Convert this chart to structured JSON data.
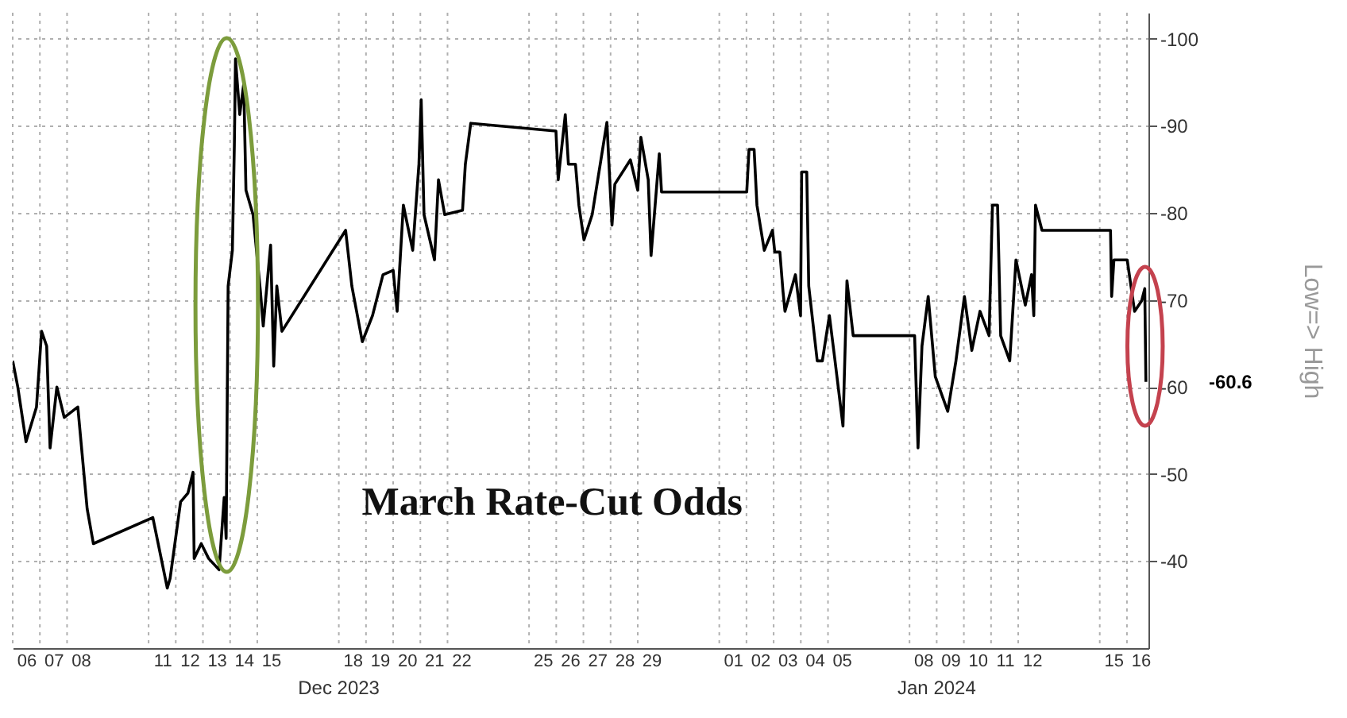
{
  "chart_data": {
    "type": "line",
    "title": "March Rate-Cut Odds",
    "ylabel": "Low=> High",
    "x": [
      "2023-12-06T00:00",
      "2023-12-06T04:30",
      "2023-12-06T11:45",
      "2023-12-06T21:00",
      "2023-12-07T01:30",
      "2023-12-07T06:00",
      "2023-12-07T09:00",
      "2023-12-07T15:00",
      "2023-12-07T21:30",
      "2023-12-08T09:30",
      "2023-12-08T17:45",
      "2023-12-08T23:15",
      "2023-12-11T03:45",
      "2023-12-11T16:30",
      "2023-12-11T19:00",
      "2023-12-12T04:15",
      "2023-12-12T10:45",
      "2023-12-12T15:15",
      "2023-12-12T16:15",
      "2023-12-12T22:30",
      "2023-12-13T05:00",
      "2023-12-13T14:15",
      "2023-12-13T18:45",
      "2023-12-13T20:30",
      "2023-12-13T22:15",
      "2023-12-14T02:00",
      "2023-12-14T03:45",
      "2023-12-14T04:45",
      "2023-12-14T08:30",
      "2023-12-14T12:00",
      "2023-12-14T14:00",
      "2023-12-14T20:15",
      "2023-12-15T02:45",
      "2023-12-15T05:15",
      "2023-12-15T11:45",
      "2023-12-15T14:30",
      "2023-12-15T17:15",
      "2023-12-15T21:45",
      "2023-12-18T06:00",
      "2023-12-18T11:30",
      "2023-12-18T20:45",
      "2023-12-19T05:45",
      "2023-12-19T15:00",
      "2023-12-20T00:00",
      "2023-12-20T03:30",
      "2023-12-20T09:00",
      "2023-12-20T17:15",
      "2023-12-20T22:45",
      "2023-12-21T00:45",
      "2023-12-21T03:15",
      "2023-12-21T12:30",
      "2023-12-21T16:00",
      "2023-12-21T21:30",
      "2023-12-22T13:15",
      "2023-12-22T15:45",
      "2023-12-22T20:30",
      "2023-12-25T23:45",
      "2023-12-26T01:45",
      "2023-12-26T08:00",
      "2023-12-26T10:45",
      "2023-12-26T17:00",
      "2023-12-26T20:00",
      "2023-12-27T00:30",
      "2023-12-27T07:45",
      "2023-12-27T20:45",
      "2023-12-28T01:15",
      "2023-12-28T03:45",
      "2023-12-28T17:30",
      "2023-12-29T00:00",
      "2023-12-29T02:45",
      "2023-12-29T09:15",
      "2023-12-29T11:45",
      "2023-12-29T19:00",
      "2023-12-29T21:00",
      "2024-01-02T00:15",
      "2024-01-02T02:15",
      "2024-01-02T06:45",
      "2024-01-02T09:15",
      "2024-01-02T15:45",
      "2024-01-02T23:00",
      "2024-01-03T01:00",
      "2024-01-03T05:30",
      "2024-01-03T08:15",
      "2024-01-03T10:00",
      "2024-01-03T19:15",
      "2024-01-03T23:45",
      "2024-01-04T00:45",
      "2024-01-04T05:15",
      "2024-01-04T07:00",
      "2024-01-04T14:30",
      "2024-01-04T19:00",
      "2024-01-05T01:15",
      "2024-01-05T05:45",
      "2024-01-05T13:15",
      "2024-01-05T16:45",
      "2024-01-05T22:15",
      "2024-01-08T04:30",
      "2024-01-08T07:30",
      "2024-01-08T11:00",
      "2024-01-08T16:30",
      "2024-01-08T22:45",
      "2024-01-09T09:45",
      "2024-01-09T17:00",
      "2024-01-10T00:30",
      "2024-01-10T07:00",
      "2024-01-10T14:15",
      "2024-01-10T22:15",
      "2024-01-11T01:15",
      "2024-01-11T05:45",
      "2024-01-11T08:30",
      "2024-01-11T16:30",
      "2024-01-11T22:00",
      "2024-01-12T06:15",
      "2024-01-12T11:45",
      "2024-01-12T13:45",
      "2024-01-12T15:15",
      "2024-01-12T21:00",
      "2024-01-15T09:30",
      "2024-01-15T10:30",
      "2024-01-15T12:30",
      "2024-01-16T00:15",
      "2024-01-16T06:45",
      "2024-01-16T13:00",
      "2024-01-16T15:45",
      "2024-01-16T16:45"
    ],
    "series": [
      {
        "color": "#000000",
        "values": [
          -63,
          -60,
          -53.7,
          -57.7,
          -66.4,
          -64.7,
          -53,
          -60,
          -56.5,
          -57.7,
          -46,
          -42,
          -45,
          -36.9,
          -38,
          -46.8,
          -47.8,
          -50.2,
          -40.3,
          -42,
          -40.3,
          -39,
          -47.3,
          -42.6,
          -71.6,
          -75.7,
          -87.8,
          -97.7,
          -91.3,
          -94.8,
          -82.6,
          -79.8,
          -71,
          -67,
          -76.3,
          -62.4,
          -71.6,
          -66.4,
          -78,
          -71.6,
          -65.2,
          -68.2,
          -72.9,
          -73.4,
          -68.7,
          -80.9,
          -75.7,
          -85.6,
          -93,
          -79.8,
          -74.6,
          -83.8,
          -79.8,
          -80.3,
          -85.6,
          -90.3,
          -89.4,
          -83.8,
          -91.3,
          -85.6,
          -85.6,
          -80.9,
          -76.9,
          -79.8,
          -90.4,
          -78.6,
          -83.3,
          -86.1,
          -82.6,
          -88.7,
          -83.8,
          -75.1,
          -86.8,
          -82.4,
          -82.4,
          -87.3,
          -87.3,
          -80.9,
          -75.7,
          -78,
          -75.5,
          -75.5,
          -71,
          -68.7,
          -72.9,
          -68.2,
          -84.7,
          -84.7,
          -71.6,
          -63,
          -63,
          -68.2,
          -63.5,
          -55.5,
          -72.2,
          -65.9,
          -65.9,
          -53,
          -64.7,
          -70.4,
          -61.2,
          -57.2,
          -63,
          -70.4,
          -64.2,
          -68.7,
          -65.9,
          -80.9,
          -80.9,
          -65.9,
          -63,
          -74.6,
          -69.4,
          -72.9,
          -68.2,
          -80.9,
          -78,
          -78,
          -70.4,
          -74.6,
          -74.6,
          -68.7,
          -69.9,
          -71.3,
          -60.6
        ]
      }
    ],
    "xlim": [
      "2023-12-06T00:00",
      "2024-01-16T19:00"
    ],
    "xticks": [
      {
        "value": "2023-12-06T12:00",
        "label": "06"
      },
      {
        "value": "2023-12-07T12:00",
        "label": "07"
      },
      {
        "value": "2023-12-08T12:00",
        "label": "08"
      },
      {
        "value": "2023-12-11T12:00",
        "label": "11"
      },
      {
        "value": "2023-12-12T12:00",
        "label": "12"
      },
      {
        "value": "2023-12-13T12:00",
        "label": "13"
      },
      {
        "value": "2023-12-14T12:00",
        "label": "14"
      },
      {
        "value": "2023-12-15T12:00",
        "label": "15"
      },
      {
        "value": "2023-12-18T12:00",
        "label": "18"
      },
      {
        "value": "2023-12-19T12:00",
        "label": "19"
      },
      {
        "value": "2023-12-20T12:00",
        "label": "20"
      },
      {
        "value": "2023-12-21T12:00",
        "label": "21"
      },
      {
        "value": "2023-12-22T12:00",
        "label": "22"
      },
      {
        "value": "2023-12-25T12:00",
        "label": "25"
      },
      {
        "value": "2023-12-26T12:00",
        "label": "26"
      },
      {
        "value": "2023-12-27T12:00",
        "label": "27"
      },
      {
        "value": "2023-12-28T12:00",
        "label": "28"
      },
      {
        "value": "2023-12-29T12:00",
        "label": "29"
      },
      {
        "value": "2024-01-01T12:00",
        "label": "01"
      },
      {
        "value": "2024-01-02T12:00",
        "label": "02"
      },
      {
        "value": "2024-01-03T12:00",
        "label": "03"
      },
      {
        "value": "2024-01-04T12:00",
        "label": "04"
      },
      {
        "value": "2024-01-05T12:00",
        "label": "05"
      },
      {
        "value": "2024-01-08T12:00",
        "label": "08"
      },
      {
        "value": "2024-01-09T12:00",
        "label": "09"
      },
      {
        "value": "2024-01-10T12:00",
        "label": "10"
      },
      {
        "value": "2024-01-11T12:00",
        "label": "11"
      },
      {
        "value": "2024-01-12T12:00",
        "label": "12"
      },
      {
        "value": "2024-01-15T12:00",
        "label": "15"
      },
      {
        "value": "2024-01-16T12:00",
        "label": "16"
      }
    ],
    "ylim": [
      -30,
      -103
    ],
    "yticks": [
      -40,
      -50,
      -60,
      -70,
      -80,
      -90,
      -100
    ],
    "grid": true,
    "annotations": [
      "Dec 2023",
      "Jan 2024",
      "-60.6"
    ]
  }
}
